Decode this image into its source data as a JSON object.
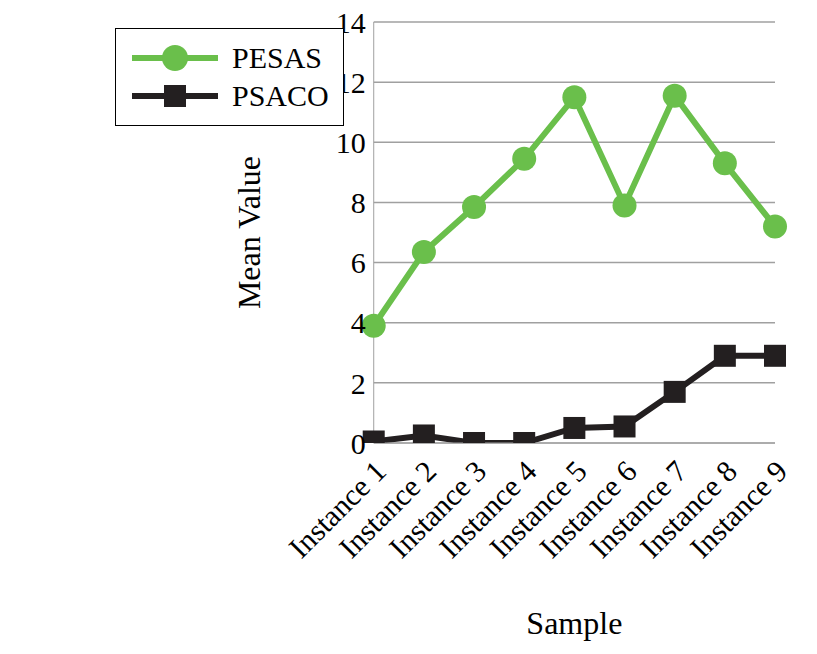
{
  "chart_data": {
    "type": "line",
    "x_label": "Sample",
    "y_label": "Mean Value",
    "categories": [
      "Instance 1",
      "Instance 2",
      "Instance 3",
      "Instance 4",
      "Instance 5",
      "Instance 6",
      "Instance 7",
      "Instance 8",
      "Instance 9"
    ],
    "series": [
      {
        "name": "PESAS",
        "color": "#6abf4b",
        "marker": "circle",
        "values": [
          3.9,
          6.35,
          7.85,
          9.45,
          11.5,
          7.9,
          11.55,
          9.3,
          7.2
        ]
      },
      {
        "name": "PSACO",
        "color": "#231f20",
        "marker": "square",
        "values": [
          0.05,
          0.25,
          0.0,
          0.0,
          0.5,
          0.55,
          1.7,
          2.9,
          2.9
        ]
      }
    ],
    "ylim": [
      0,
      14
    ],
    "yticks": [
      0,
      2,
      4,
      6,
      8,
      10,
      12,
      14
    ],
    "grid": true,
    "legend": "top-left"
  }
}
